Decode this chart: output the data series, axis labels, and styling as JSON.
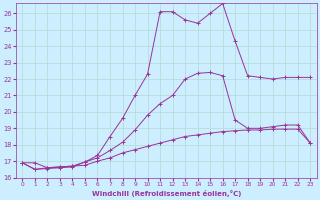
{
  "xlabel": "Windchill (Refroidissement éolien,°C)",
  "bg_color": "#cceeff",
  "grid_color": "#aaddcc",
  "line_color": "#993399",
  "xlim": [
    -0.5,
    23.5
  ],
  "ylim": [
    16,
    26.6
  ],
  "yticks": [
    16,
    17,
    18,
    19,
    20,
    21,
    22,
    23,
    24,
    25,
    26
  ],
  "xticks": [
    0,
    1,
    2,
    3,
    4,
    5,
    6,
    7,
    8,
    9,
    10,
    11,
    12,
    13,
    14,
    15,
    16,
    17,
    18,
    19,
    20,
    21,
    22,
    23
  ],
  "line1_x": [
    0,
    1,
    2,
    3,
    4,
    5,
    6,
    7,
    8,
    9,
    10,
    11,
    12,
    13,
    14,
    15,
    16,
    17,
    18,
    19,
    20,
    21,
    22,
    23
  ],
  "line1_y": [
    16.9,
    16.9,
    16.6,
    16.65,
    16.7,
    16.75,
    17.0,
    17.2,
    17.5,
    17.7,
    17.9,
    18.1,
    18.3,
    18.5,
    18.6,
    18.7,
    18.8,
    18.85,
    18.9,
    18.9,
    18.95,
    18.95,
    18.95,
    18.1
  ],
  "line2_x": [
    0,
    1,
    2,
    3,
    4,
    5,
    6,
    7,
    8,
    9,
    10,
    11,
    12,
    13,
    14,
    15,
    16,
    17,
    18,
    19,
    20,
    21,
    22,
    23
  ],
  "line2_y": [
    16.9,
    16.5,
    16.55,
    16.6,
    16.65,
    16.95,
    17.35,
    18.5,
    19.6,
    21.0,
    22.3,
    26.1,
    26.1,
    25.6,
    25.4,
    26.0,
    26.6,
    24.3,
    22.2,
    22.1,
    22.0,
    22.1,
    22.1,
    22.1
  ],
  "line3_x": [
    0,
    1,
    2,
    3,
    4,
    5,
    6,
    7,
    8,
    9,
    10,
    11,
    12,
    13,
    14,
    15,
    16,
    17,
    18,
    19,
    20,
    21,
    22,
    23
  ],
  "line3_y": [
    16.9,
    16.5,
    16.6,
    16.65,
    16.7,
    16.95,
    17.2,
    17.65,
    18.15,
    18.9,
    19.8,
    20.5,
    21.0,
    22.0,
    22.35,
    22.4,
    22.2,
    19.5,
    19.0,
    19.0,
    19.1,
    19.2,
    19.2,
    18.1
  ]
}
